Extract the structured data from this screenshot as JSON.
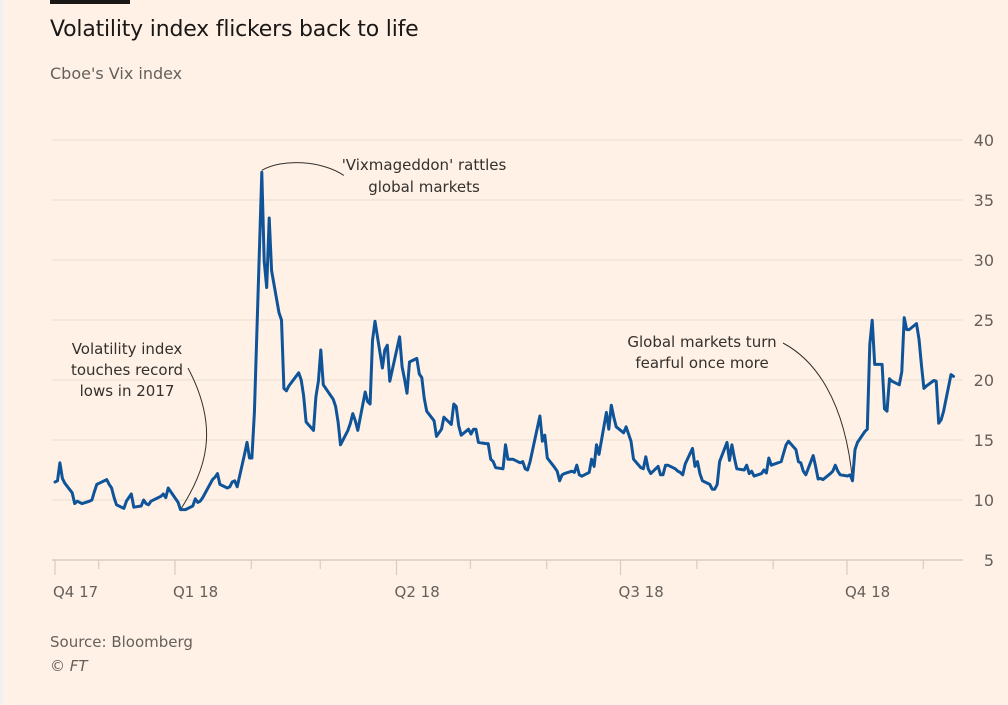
{
  "header": {
    "title": "Volatility index flickers back to life",
    "subtitle": "Cboe's Vix index"
  },
  "footer": {
    "source": "Source: Bloomberg",
    "copyright": "© FT"
  },
  "colors": {
    "background": "#fff1e5",
    "line": "#0f5499",
    "grid": "#e9ddd1",
    "text": "#66605c"
  },
  "chart_data": {
    "type": "line",
    "title": "Volatility index flickers back to life",
    "subtitle": "Cboe's Vix index",
    "xlabel": "",
    "ylabel": "",
    "ylim": [
      5,
      40
    ],
    "yticks": [
      40,
      35,
      30,
      25,
      20,
      15,
      10,
      5
    ],
    "y_axis_position": "right",
    "grid": true,
    "xlim": [
      "2017-11-13",
      "2018-12-14"
    ],
    "x_major_ticks": [
      {
        "label": "Q4 17",
        "date": "2017-11-13"
      },
      {
        "label": "Q1 18",
        "date": "2018-01-01"
      },
      {
        "label": "Q2 18",
        "date": "2018-04-01"
      },
      {
        "label": "Q3 18",
        "date": "2018-07-01"
      },
      {
        "label": "Q4 18",
        "date": "2018-10-01"
      }
    ],
    "x_minor_ticks": [
      "2017-12-01",
      "2018-02-01",
      "2018-03-01",
      "2018-05-01",
      "2018-06-01",
      "2018-08-01",
      "2018-09-01",
      "2018-11-01"
    ],
    "series": [
      {
        "name": "Cboe Vix index",
        "points": [
          [
            "2017-11-13",
            11.5
          ],
          [
            "2017-11-14",
            11.6
          ],
          [
            "2017-11-15",
            13.1
          ],
          [
            "2017-11-16",
            11.8
          ],
          [
            "2017-11-17",
            11.4
          ],
          [
            "2017-11-20",
            10.6
          ],
          [
            "2017-11-21",
            9.7
          ],
          [
            "2017-11-22",
            9.9
          ],
          [
            "2017-11-24",
            9.7
          ],
          [
            "2017-11-27",
            9.9
          ],
          [
            "2017-11-28",
            10.0
          ],
          [
            "2017-11-29",
            10.7
          ],
          [
            "2017-11-30",
            11.3
          ],
          [
            "2017-12-01",
            11.4
          ],
          [
            "2017-12-04",
            11.7
          ],
          [
            "2017-12-05",
            11.3
          ],
          [
            "2017-12-06",
            11.0
          ],
          [
            "2017-12-07",
            10.2
          ],
          [
            "2017-12-08",
            9.6
          ],
          [
            "2017-12-11",
            9.3
          ],
          [
            "2017-12-12",
            9.9
          ],
          [
            "2017-12-13",
            10.2
          ],
          [
            "2017-12-14",
            10.5
          ],
          [
            "2017-12-15",
            9.4
          ],
          [
            "2017-12-18",
            9.5
          ],
          [
            "2017-12-19",
            10.0
          ],
          [
            "2017-12-20",
            9.7
          ],
          [
            "2017-12-21",
            9.6
          ],
          [
            "2017-12-22",
            9.9
          ],
          [
            "2017-12-26",
            10.3
          ],
          [
            "2017-12-27",
            10.5
          ],
          [
            "2017-12-28",
            10.2
          ],
          [
            "2017-12-29",
            11.0
          ],
          [
            "2018-01-02",
            9.8
          ],
          [
            "2018-01-03",
            9.2
          ],
          [
            "2018-01-04",
            9.2
          ],
          [
            "2018-01-05",
            9.2
          ],
          [
            "2018-01-08",
            9.5
          ],
          [
            "2018-01-09",
            10.1
          ],
          [
            "2018-01-10",
            9.8
          ],
          [
            "2018-01-11",
            9.9
          ],
          [
            "2018-01-12",
            10.2
          ],
          [
            "2018-01-16",
            11.7
          ],
          [
            "2018-01-17",
            11.9
          ],
          [
            "2018-01-18",
            12.2
          ],
          [
            "2018-01-19",
            11.3
          ],
          [
            "2018-01-22",
            11.0
          ],
          [
            "2018-01-23",
            11.1
          ],
          [
            "2018-01-24",
            11.5
          ],
          [
            "2018-01-25",
            11.6
          ],
          [
            "2018-01-26",
            11.1
          ],
          [
            "2018-01-29",
            13.8
          ],
          [
            "2018-01-30",
            14.8
          ],
          [
            "2018-01-31",
            13.5
          ],
          [
            "2018-02-01",
            13.5
          ],
          [
            "2018-02-02",
            17.3
          ],
          [
            "2018-02-05",
            37.3
          ],
          [
            "2018-02-06",
            29.9
          ],
          [
            "2018-02-07",
            27.7
          ],
          [
            "2018-02-08",
            33.5
          ],
          [
            "2018-02-09",
            29.1
          ],
          [
            "2018-02-12",
            25.6
          ],
          [
            "2018-02-13",
            25.0
          ],
          [
            "2018-02-14",
            19.3
          ],
          [
            "2018-02-15",
            19.1
          ],
          [
            "2018-02-16",
            19.5
          ],
          [
            "2018-02-20",
            20.6
          ],
          [
            "2018-02-21",
            20.0
          ],
          [
            "2018-02-22",
            18.7
          ],
          [
            "2018-02-23",
            16.5
          ],
          [
            "2018-02-26",
            15.8
          ],
          [
            "2018-02-27",
            18.6
          ],
          [
            "2018-02-28",
            19.9
          ],
          [
            "2018-03-01",
            22.5
          ],
          [
            "2018-03-02",
            19.6
          ],
          [
            "2018-03-05",
            18.7
          ],
          [
            "2018-03-06",
            18.4
          ],
          [
            "2018-03-07",
            17.8
          ],
          [
            "2018-03-08",
            16.5
          ],
          [
            "2018-03-09",
            14.6
          ],
          [
            "2018-03-12",
            15.8
          ],
          [
            "2018-03-13",
            16.4
          ],
          [
            "2018-03-14",
            17.2
          ],
          [
            "2018-03-15",
            16.6
          ],
          [
            "2018-03-16",
            15.8
          ],
          [
            "2018-03-19",
            19.0
          ],
          [
            "2018-03-20",
            18.2
          ],
          [
            "2018-03-21",
            18.0
          ],
          [
            "2018-03-22",
            23.3
          ],
          [
            "2018-03-23",
            24.9
          ],
          [
            "2018-03-26",
            21.0
          ],
          [
            "2018-03-27",
            22.5
          ],
          [
            "2018-03-28",
            22.9
          ],
          [
            "2018-03-29",
            19.9
          ],
          [
            "2018-04-02",
            23.6
          ],
          [
            "2018-04-03",
            21.1
          ],
          [
            "2018-04-04",
            20.1
          ],
          [
            "2018-04-05",
            18.9
          ],
          [
            "2018-04-06",
            21.5
          ],
          [
            "2018-04-09",
            21.8
          ],
          [
            "2018-04-10",
            20.5
          ],
          [
            "2018-04-11",
            20.2
          ],
          [
            "2018-04-12",
            18.5
          ],
          [
            "2018-04-13",
            17.4
          ],
          [
            "2018-04-16",
            16.6
          ],
          [
            "2018-04-17",
            15.3
          ],
          [
            "2018-04-18",
            15.6
          ],
          [
            "2018-04-19",
            15.9
          ],
          [
            "2018-04-20",
            16.9
          ],
          [
            "2018-04-23",
            16.3
          ],
          [
            "2018-04-24",
            18.0
          ],
          [
            "2018-04-25",
            17.8
          ],
          [
            "2018-04-26",
            16.2
          ],
          [
            "2018-04-27",
            15.4
          ],
          [
            "2018-04-30",
            15.9
          ],
          [
            "2018-05-01",
            15.5
          ],
          [
            "2018-05-02",
            15.9
          ],
          [
            "2018-05-03",
            15.9
          ],
          [
            "2018-05-04",
            14.8
          ],
          [
            "2018-05-07",
            14.7
          ],
          [
            "2018-05-08",
            14.7
          ],
          [
            "2018-05-09",
            13.4
          ],
          [
            "2018-05-10",
            13.2
          ],
          [
            "2018-05-11",
            12.7
          ],
          [
            "2018-05-14",
            12.6
          ],
          [
            "2018-05-15",
            14.6
          ],
          [
            "2018-05-16",
            13.4
          ],
          [
            "2018-05-17",
            13.4
          ],
          [
            "2018-05-18",
            13.4
          ],
          [
            "2018-05-21",
            13.1
          ],
          [
            "2018-05-22",
            13.2
          ],
          [
            "2018-05-23",
            12.6
          ],
          [
            "2018-05-24",
            12.5
          ],
          [
            "2018-05-25",
            13.2
          ],
          [
            "2018-05-29",
            17.0
          ],
          [
            "2018-05-30",
            14.9
          ],
          [
            "2018-05-31",
            15.4
          ],
          [
            "2018-06-01",
            13.5
          ],
          [
            "2018-06-04",
            12.7
          ],
          [
            "2018-06-05",
            12.4
          ],
          [
            "2018-06-06",
            11.6
          ],
          [
            "2018-06-07",
            12.1
          ],
          [
            "2018-06-08",
            12.2
          ],
          [
            "2018-06-11",
            12.4
          ],
          [
            "2018-06-12",
            12.3
          ],
          [
            "2018-06-13",
            12.9
          ],
          [
            "2018-06-14",
            12.1
          ],
          [
            "2018-06-15",
            11.98
          ],
          [
            "2018-06-18",
            12.3
          ],
          [
            "2018-06-19",
            13.4
          ],
          [
            "2018-06-20",
            12.8
          ],
          [
            "2018-06-21",
            14.6
          ],
          [
            "2018-06-22",
            13.8
          ],
          [
            "2018-06-25",
            17.3
          ],
          [
            "2018-06-26",
            15.9
          ],
          [
            "2018-06-27",
            17.9
          ],
          [
            "2018-06-28",
            16.9
          ],
          [
            "2018-06-29",
            16.1
          ],
          [
            "2018-07-02",
            15.6
          ],
          [
            "2018-07-03",
            16.1
          ],
          [
            "2018-07-05",
            14.9
          ],
          [
            "2018-07-06",
            13.4
          ],
          [
            "2018-07-09",
            12.7
          ],
          [
            "2018-07-10",
            12.6
          ],
          [
            "2018-07-11",
            13.6
          ],
          [
            "2018-07-12",
            12.6
          ],
          [
            "2018-07-13",
            12.2
          ],
          [
            "2018-07-16",
            12.8
          ],
          [
            "2018-07-17",
            12.1
          ],
          [
            "2018-07-18",
            12.1
          ],
          [
            "2018-07-19",
            12.9
          ],
          [
            "2018-07-20",
            12.9
          ],
          [
            "2018-07-23",
            12.6
          ],
          [
            "2018-07-24",
            12.4
          ],
          [
            "2018-07-25",
            12.3
          ],
          [
            "2018-07-26",
            12.1
          ],
          [
            "2018-07-27",
            13.0
          ],
          [
            "2018-07-30",
            14.3
          ],
          [
            "2018-07-31",
            12.8
          ],
          [
            "2018-08-01",
            13.2
          ],
          [
            "2018-08-02",
            12.2
          ],
          [
            "2018-08-03",
            11.6
          ],
          [
            "2018-08-06",
            11.3
          ],
          [
            "2018-08-07",
            10.9
          ],
          [
            "2018-08-08",
            10.9
          ],
          [
            "2018-08-09",
            11.3
          ],
          [
            "2018-08-10",
            13.2
          ],
          [
            "2018-08-13",
            14.8
          ],
          [
            "2018-08-14",
            13.3
          ],
          [
            "2018-08-15",
            14.6
          ],
          [
            "2018-08-16",
            13.5
          ],
          [
            "2018-08-17",
            12.6
          ],
          [
            "2018-08-20",
            12.5
          ],
          [
            "2018-08-21",
            12.9
          ],
          [
            "2018-08-22",
            12.2
          ],
          [
            "2018-08-23",
            12.4
          ],
          [
            "2018-08-24",
            11.99
          ],
          [
            "2018-08-27",
            12.2
          ],
          [
            "2018-08-28",
            12.5
          ],
          [
            "2018-08-29",
            12.25
          ],
          [
            "2018-08-30",
            13.5
          ],
          [
            "2018-08-31",
            12.9
          ],
          [
            "2018-09-04",
            13.2
          ],
          [
            "2018-09-05",
            13.9
          ],
          [
            "2018-09-06",
            14.6
          ],
          [
            "2018-09-07",
            14.9
          ],
          [
            "2018-09-10",
            14.2
          ],
          [
            "2018-09-11",
            13.2
          ],
          [
            "2018-09-12",
            13.1
          ],
          [
            "2018-09-13",
            12.4
          ],
          [
            "2018-09-14",
            12.1
          ],
          [
            "2018-09-17",
            13.7
          ],
          [
            "2018-09-18",
            12.8
          ],
          [
            "2018-09-19",
            11.75
          ],
          [
            "2018-09-20",
            11.8
          ],
          [
            "2018-09-21",
            11.7
          ],
          [
            "2018-09-24",
            12.2
          ],
          [
            "2018-09-25",
            12.4
          ],
          [
            "2018-09-26",
            12.9
          ],
          [
            "2018-09-27",
            12.4
          ],
          [
            "2018-09-28",
            12.1
          ],
          [
            "2018-10-01",
            12.0
          ],
          [
            "2018-10-02",
            12.1
          ],
          [
            "2018-10-03",
            11.6
          ],
          [
            "2018-10-04",
            14.2
          ],
          [
            "2018-10-05",
            14.8
          ],
          [
            "2018-10-08",
            15.7
          ],
          [
            "2018-10-09",
            15.9
          ],
          [
            "2018-10-10",
            22.96
          ],
          [
            "2018-10-11",
            24.98
          ],
          [
            "2018-10-12",
            21.3
          ],
          [
            "2018-10-15",
            21.3
          ],
          [
            "2018-10-16",
            17.6
          ],
          [
            "2018-10-17",
            17.4
          ],
          [
            "2018-10-18",
            20.1
          ],
          [
            "2018-10-19",
            19.9
          ],
          [
            "2018-10-22",
            19.6
          ],
          [
            "2018-10-23",
            20.7
          ],
          [
            "2018-10-24",
            25.2
          ],
          [
            "2018-10-25",
            24.2
          ],
          [
            "2018-10-26",
            24.2
          ],
          [
            "2018-10-29",
            24.7
          ],
          [
            "2018-10-30",
            23.4
          ],
          [
            "2018-10-31",
            21.2
          ],
          [
            "2018-11-01",
            19.3
          ],
          [
            "2018-11-02",
            19.5
          ],
          [
            "2018-11-05",
            19.96
          ],
          [
            "2018-11-06",
            19.9
          ],
          [
            "2018-11-07",
            16.4
          ],
          [
            "2018-11-08",
            16.7
          ],
          [
            "2018-11-09",
            17.4
          ],
          [
            "2018-11-12",
            20.45
          ],
          [
            "2018-11-13",
            20.3
          ]
        ]
      }
    ],
    "annotations": [
      {
        "text": [
          "'Vixmageddon' rattles",
          "global markets"
        ],
        "date": "2018-02-05",
        "value": 37.3
      },
      {
        "text": [
          "Volatility index",
          "touches record",
          "lows in 2017"
        ],
        "date": "2018-01-03",
        "value": 9.2
      },
      {
        "text": [
          "Global markets turn",
          "fearful once more"
        ],
        "date": "2018-10-03",
        "value": 11.6
      }
    ]
  }
}
